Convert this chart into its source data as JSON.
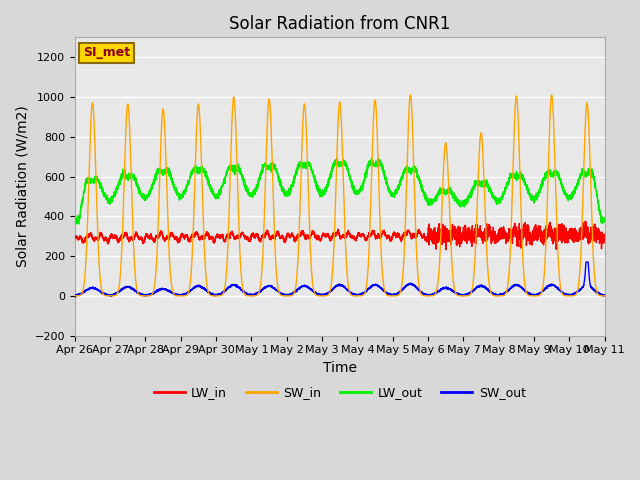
{
  "title": "Solar Radiation from CNR1",
  "xlabel": "Time",
  "ylabel": "Solar Radiation (W/m2)",
  "ylim": [
    -200,
    1300
  ],
  "yticks": [
    -200,
    0,
    200,
    400,
    600,
    800,
    1000,
    1200
  ],
  "num_days": 15,
  "x_tick_labels": [
    "Apr 26",
    "Apr 27",
    "Apr 28",
    "Apr 29",
    "Apr 30",
    "May 1",
    "May 2",
    "May 3",
    "May 4",
    "May 5",
    "May 6",
    "May 7",
    "May 8",
    "May 9",
    "May 10",
    "May 11"
  ],
  "legend_label": "SI_met",
  "legend_label_color": "#8B0000",
  "legend_box_facecolor": "#FFD700",
  "legend_box_edgecolor": "#8B6914",
  "line_colors": {
    "LW_in": "#FF0000",
    "SW_in": "#FFA500",
    "LW_out": "#00EE00",
    "SW_out": "#0000FF"
  },
  "bg_color": "#D8D8D8",
  "plot_bg_color": "#E8E8E8",
  "grid_color": "#FFFFFF",
  "title_fontsize": 12,
  "axis_label_fontsize": 10,
  "tick_fontsize": 8,
  "sw_in_amplitudes": [
    970,
    965,
    940,
    965,
    1000,
    990,
    965,
    975,
    985,
    1010,
    770,
    820,
    1005,
    1010,
    970
  ],
  "lw_out_peaks": [
    620,
    645,
    670,
    680,
    685,
    700,
    710,
    720,
    720,
    680,
    550,
    600,
    645,
    660,
    660
  ],
  "lw_out_baseline": 380,
  "sw_out_peaks": [
    40,
    45,
    35,
    50,
    55,
    50,
    50,
    55,
    55,
    60,
    40,
    50,
    55,
    55,
    50
  ]
}
